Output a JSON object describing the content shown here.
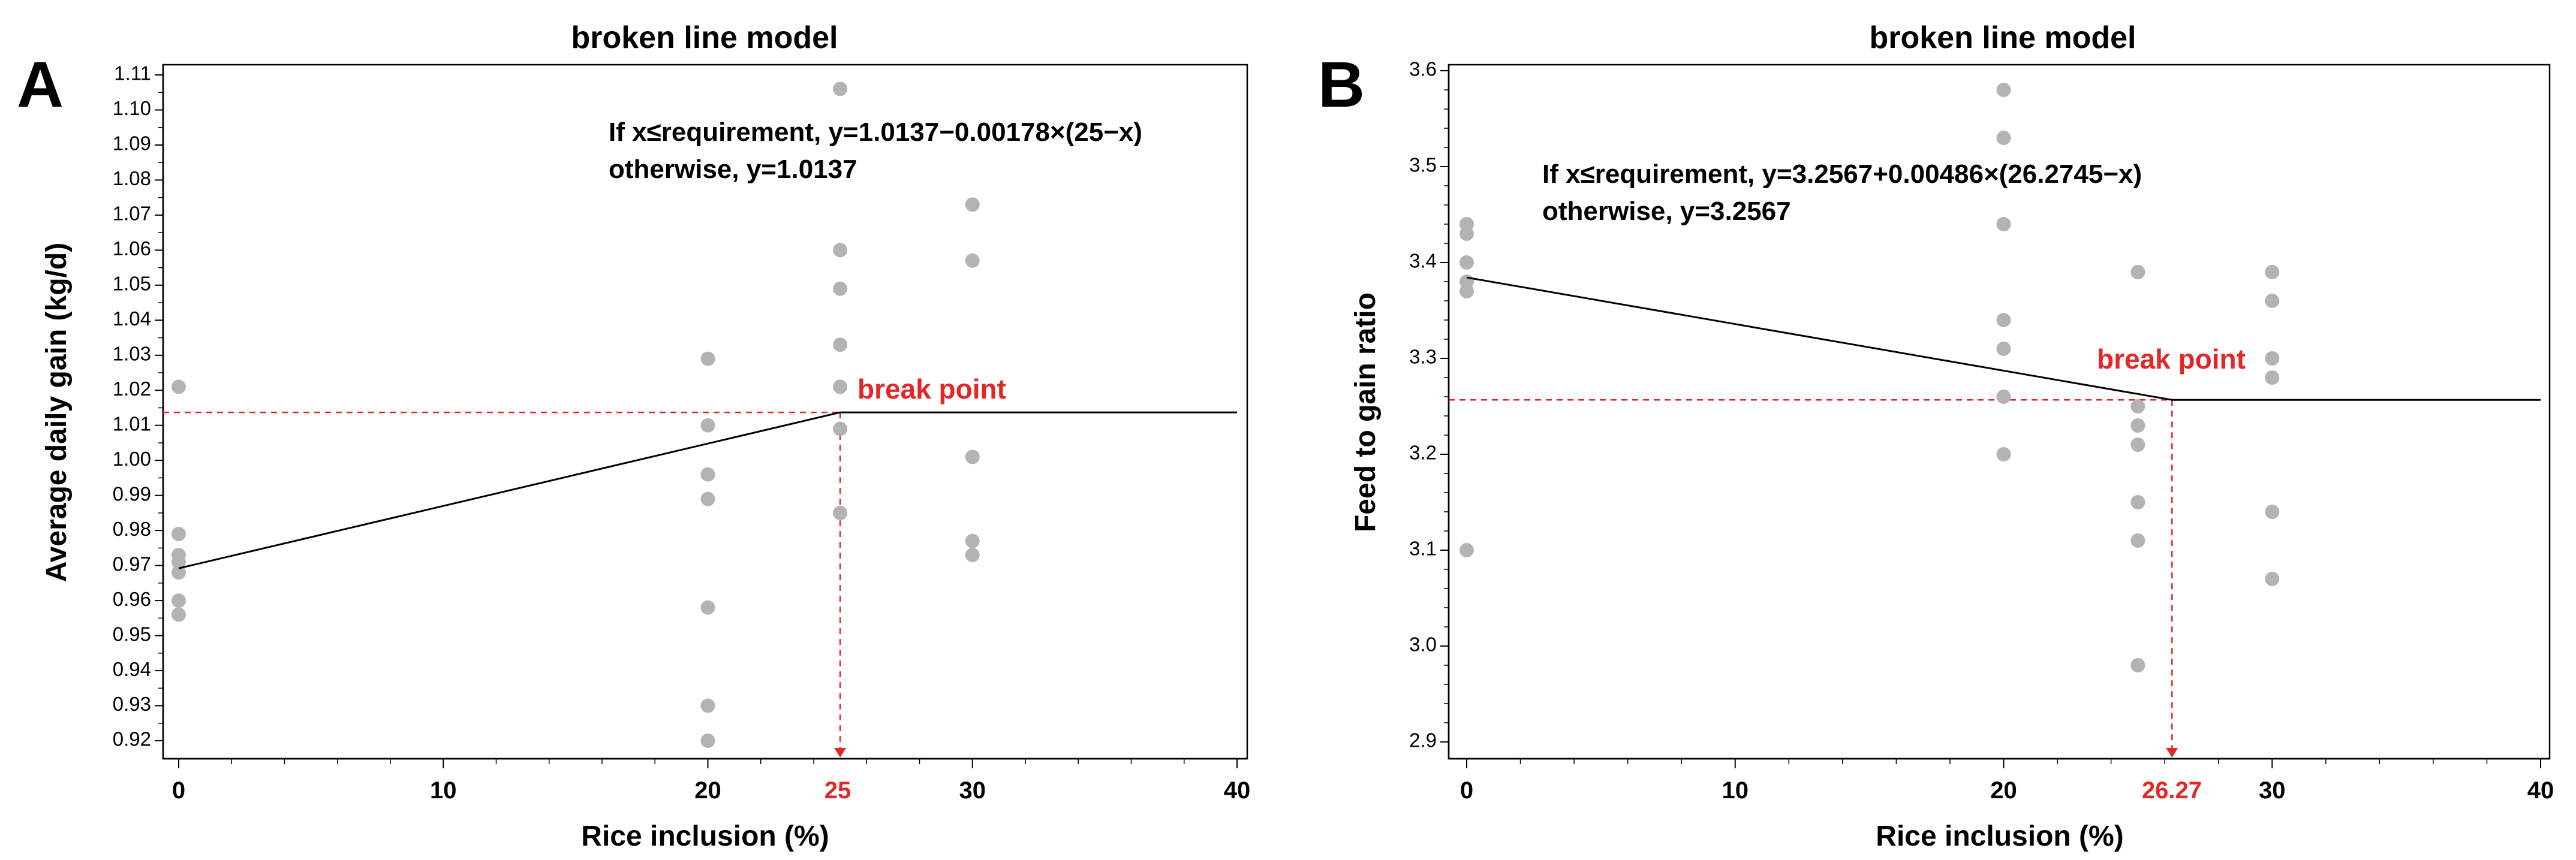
{
  "chart_data": [
    {
      "panel": "A",
      "type": "scatter",
      "title": "broken line model",
      "xlabel": "Rice inclusion (%)",
      "ylabel": "Average daily gain (kg/d)",
      "xlim": [
        0,
        40
      ],
      "ylim": [
        0.92,
        1.11
      ],
      "xticks": [
        0,
        10,
        20,
        30,
        40
      ],
      "yticks": [
        0.92,
        0.93,
        0.94,
        0.95,
        0.96,
        0.97,
        0.98,
        0.99,
        1.0,
        1.01,
        1.02,
        1.03,
        1.04,
        1.05,
        1.06,
        1.07,
        1.08,
        1.09,
        1.1,
        1.11
      ],
      "ytick_labels": [
        "0.92",
        "0.93",
        "0.94",
        "0.95",
        "0.96",
        "0.97",
        "0.98",
        "0.99",
        "1.00",
        "1.01",
        "1.02",
        "1.03",
        "1.04",
        "1.05",
        "1.06",
        "1.07",
        "1.08",
        "1.09",
        "1.10",
        "1.11"
      ],
      "points": [
        {
          "x": 0,
          "y": 1.021
        },
        {
          "x": 0,
          "y": 0.979
        },
        {
          "x": 0,
          "y": 0.973
        },
        {
          "x": 0,
          "y": 0.971
        },
        {
          "x": 0,
          "y": 0.968
        },
        {
          "x": 0,
          "y": 0.96
        },
        {
          "x": 0,
          "y": 0.956
        },
        {
          "x": 20,
          "y": 1.029
        },
        {
          "x": 20,
          "y": 1.01
        },
        {
          "x": 20,
          "y": 0.996
        },
        {
          "x": 20,
          "y": 0.989
        },
        {
          "x": 20,
          "y": 0.958
        },
        {
          "x": 20,
          "y": 0.93
        },
        {
          "x": 20,
          "y": 0.92
        },
        {
          "x": 25,
          "y": 1.106
        },
        {
          "x": 25,
          "y": 1.06
        },
        {
          "x": 25,
          "y": 1.049
        },
        {
          "x": 25,
          "y": 1.033
        },
        {
          "x": 25,
          "y": 1.021
        },
        {
          "x": 25,
          "y": 1.009
        },
        {
          "x": 25,
          "y": 0.985
        },
        {
          "x": 30,
          "y": 1.073
        },
        {
          "x": 30,
          "y": 1.057
        },
        {
          "x": 30,
          "y": 1.001
        },
        {
          "x": 30,
          "y": 0.977
        },
        {
          "x": 30,
          "y": 0.973
        }
      ],
      "fit_line": [
        {
          "x": 0,
          "y": 0.9692
        },
        {
          "x": 25,
          "y": 1.0137
        },
        {
          "x": 40,
          "y": 1.0137
        }
      ],
      "break_point": {
        "x": 25,
        "y": 1.0137,
        "label": "break point",
        "x_label": "25"
      },
      "equation_lines": [
        "If x≤requirement, y=1.0137−0.00178×(25−x)",
        "otherwise, y=1.0137"
      ],
      "colors": {
        "points": "#b3b3b3",
        "line": "#000000",
        "break": "#e32626"
      }
    },
    {
      "panel": "B",
      "type": "scatter",
      "title": "broken line model",
      "xlabel": "Rice inclusion (%)",
      "ylabel": "Feed to gain ratio",
      "xlim": [
        0,
        40
      ],
      "ylim": [
        2.9,
        3.6
      ],
      "xticks": [
        0,
        10,
        20,
        30,
        40
      ],
      "yticks": [
        2.9,
        3.0,
        3.1,
        3.2,
        3.3,
        3.4,
        3.5,
        3.6
      ],
      "ytick_labels": [
        "2.9",
        "3.0",
        "3.1",
        "3.2",
        "3.3",
        "3.4",
        "3.5",
        "3.6"
      ],
      "points": [
        {
          "x": 0,
          "y": 3.44
        },
        {
          "x": 0,
          "y": 3.43
        },
        {
          "x": 0,
          "y": 3.4
        },
        {
          "x": 0,
          "y": 3.38
        },
        {
          "x": 0,
          "y": 3.37
        },
        {
          "x": 0,
          "y": 3.1
        },
        {
          "x": 20,
          "y": 3.58
        },
        {
          "x": 20,
          "y": 3.53
        },
        {
          "x": 20,
          "y": 3.44
        },
        {
          "x": 20,
          "y": 3.34
        },
        {
          "x": 20,
          "y": 3.31
        },
        {
          "x": 20,
          "y": 3.26
        },
        {
          "x": 20,
          "y": 3.2
        },
        {
          "x": 25,
          "y": 3.39
        },
        {
          "x": 25,
          "y": 3.25
        },
        {
          "x": 25,
          "y": 3.23
        },
        {
          "x": 25,
          "y": 3.21
        },
        {
          "x": 25,
          "y": 3.15
        },
        {
          "x": 25,
          "y": 3.11
        },
        {
          "x": 25,
          "y": 2.98
        },
        {
          "x": 30,
          "y": 3.39
        },
        {
          "x": 30,
          "y": 3.36
        },
        {
          "x": 30,
          "y": 3.3
        },
        {
          "x": 30,
          "y": 3.28
        },
        {
          "x": 30,
          "y": 3.14
        },
        {
          "x": 30,
          "y": 3.07
        }
      ],
      "fit_line": [
        {
          "x": 0,
          "y": 3.3844
        },
        {
          "x": 26.27,
          "y": 3.2567
        },
        {
          "x": 40,
          "y": 3.2567
        }
      ],
      "break_point": {
        "x": 26.27,
        "y": 3.2567,
        "label": "break point",
        "x_label": "26.27"
      },
      "equation_lines": [
        "If x≤requirement, y=3.2567+0.00486×(26.2745−x)",
        "otherwise, y=3.2567"
      ],
      "colors": {
        "points": "#b3b3b3",
        "line": "#000000",
        "break": "#e32626"
      }
    }
  ]
}
